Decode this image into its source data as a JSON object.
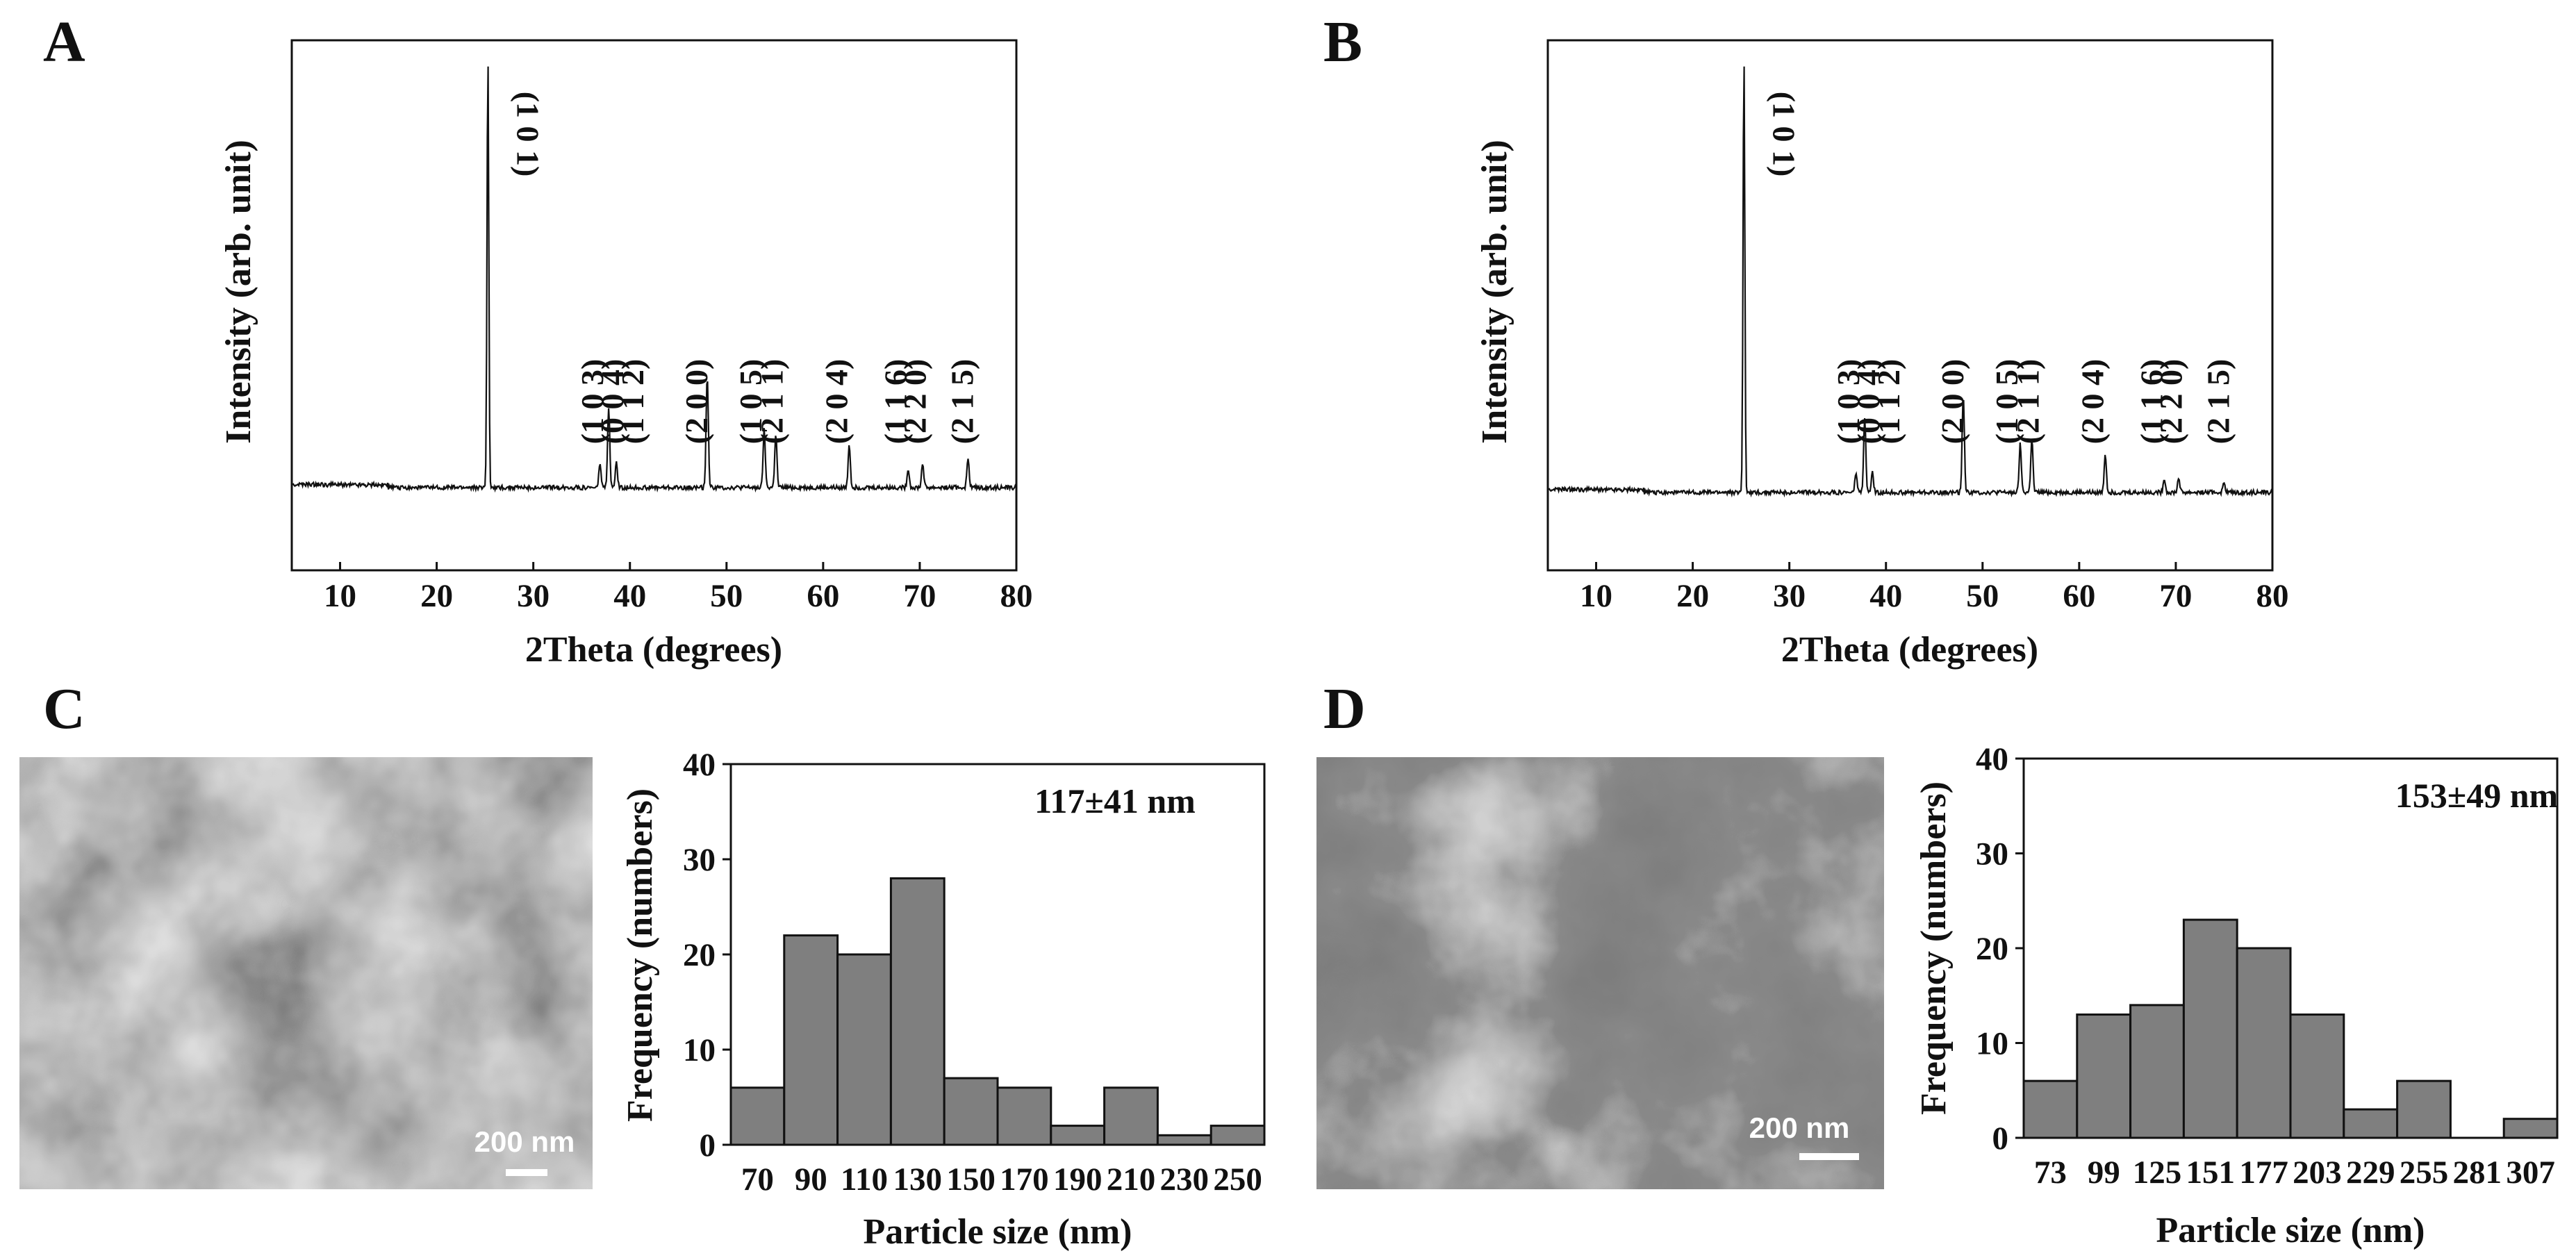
{
  "panels": [
    "A",
    "B",
    "C",
    "D"
  ],
  "chart_data": [
    {
      "panel": "A",
      "type": "line",
      "xlabel": "2Theta (degrees)",
      "ylabel": "Intensity (arb. unit)",
      "xlim": [
        5,
        80
      ],
      "ylim": [
        0,
        100
      ],
      "xticks": [
        10,
        20,
        30,
        40,
        50,
        60,
        70,
        80
      ],
      "baseline": 11,
      "peaks": [
        {
          "x": 25.3,
          "y": 100,
          "label": "(1 0 1)"
        },
        {
          "x": 36.9,
          "y": 16
        },
        {
          "x": 37.8,
          "y": 27
        },
        {
          "x": 38.6,
          "y": 16
        },
        {
          "x": 48.0,
          "y": 34
        },
        {
          "x": 53.9,
          "y": 23
        },
        {
          "x": 55.1,
          "y": 22
        },
        {
          "x": 62.7,
          "y": 20
        },
        {
          "x": 68.8,
          "y": 15
        },
        {
          "x": 70.3,
          "y": 16
        },
        {
          "x": 75.0,
          "y": 17
        }
      ],
      "hkl_labels": [
        {
          "x": 37.2,
          "label": "(1 0 3)"
        },
        {
          "x": 39.3,
          "label": "(0 0 4)"
        },
        {
          "x": 41.4,
          "label": "(1 1 2)"
        },
        {
          "x": 48.0,
          "label": "(2 0 0)"
        },
        {
          "x": 53.6,
          "label": "(1 0 5)"
        },
        {
          "x": 55.8,
          "label": "(2 1 1)"
        },
        {
          "x": 62.5,
          "label": "(2 0 4)"
        },
        {
          "x": 68.6,
          "label": "(1 1 6)"
        },
        {
          "x": 70.6,
          "label": "(2 2 0)"
        },
        {
          "x": 75.5,
          "label": "(2 1 5)"
        }
      ]
    },
    {
      "panel": "B",
      "type": "line",
      "xlabel": "2Theta (degrees)",
      "ylabel": "Intensity (arb. unit)",
      "xlim": [
        5,
        80
      ],
      "ylim": [
        0,
        100
      ],
      "xticks": [
        10,
        20,
        30,
        40,
        50,
        60,
        70,
        80
      ],
      "baseline": 10,
      "peaks": [
        {
          "x": 25.3,
          "y": 100,
          "label": "(1 0 1)"
        },
        {
          "x": 36.9,
          "y": 14
        },
        {
          "x": 37.8,
          "y": 25
        },
        {
          "x": 38.6,
          "y": 14
        },
        {
          "x": 48.0,
          "y": 30
        },
        {
          "x": 53.9,
          "y": 20
        },
        {
          "x": 55.1,
          "y": 21
        },
        {
          "x": 62.7,
          "y": 18
        },
        {
          "x": 68.8,
          "y": 13
        },
        {
          "x": 70.3,
          "y": 13
        },
        {
          "x": 75.0,
          "y": 12
        }
      ],
      "hkl_labels": [
        {
          "x": 37.2,
          "label": "(1 0 3)"
        },
        {
          "x": 39.3,
          "label": "(0 0 4)"
        },
        {
          "x": 41.4,
          "label": "(1 1 2)"
        },
        {
          "x": 48.0,
          "label": "(2 0 0)"
        },
        {
          "x": 53.6,
          "label": "(1 0 5)"
        },
        {
          "x": 55.8,
          "label": "(2 1 1)"
        },
        {
          "x": 62.5,
          "label": "(2 0 4)"
        },
        {
          "x": 68.6,
          "label": "(1 1 6)"
        },
        {
          "x": 70.6,
          "label": "(2 2 0)"
        },
        {
          "x": 75.5,
          "label": "(2 1 5)"
        }
      ]
    },
    {
      "panel": "C",
      "type": "bar",
      "xlabel": "Particle size (nm)",
      "ylabel": "Frequency (numbers)",
      "annotation": "117±41 nm",
      "ylim": [
        0,
        40
      ],
      "yticks": [
        0,
        10,
        20,
        30,
        40
      ],
      "categories": [
        "70",
        "90",
        "110",
        "130",
        "150",
        "170",
        "190",
        "210",
        "230",
        "250"
      ],
      "values": [
        6,
        22,
        20,
        28,
        7,
        6,
        2,
        6,
        1,
        2
      ],
      "bar_color": "#7f7f7f",
      "scale_bar": "200 nm"
    },
    {
      "panel": "D",
      "type": "bar",
      "xlabel": "Particle size (nm)",
      "ylabel": "Frequency (numbers)",
      "annotation": "153±49 nm",
      "ylim": [
        0,
        40
      ],
      "yticks": [
        0,
        10,
        20,
        30,
        40
      ],
      "categories": [
        "73",
        "99",
        "125",
        "151",
        "177",
        "203",
        "229",
        "255",
        "281",
        "307"
      ],
      "values": [
        6,
        13,
        14,
        23,
        20,
        13,
        3,
        6,
        0,
        2
      ],
      "bar_color": "#7f7f7f",
      "scale_bar": "200 nm"
    }
  ]
}
